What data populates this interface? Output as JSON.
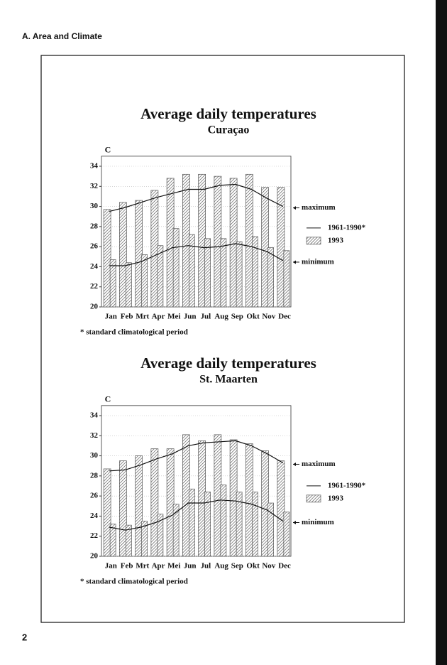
{
  "header": "A. Area and Climate",
  "page_number": "2",
  "chart_data": [
    {
      "type": "bar_line",
      "title": "Average daily temperatures",
      "subtitle": "Curaçao",
      "y_label": "C",
      "categories": [
        "Jan",
        "Feb",
        "Mrt",
        "Apr",
        "Mei",
        "Jun",
        "Jul",
        "Aug",
        "Sep",
        "Okt",
        "Nov",
        "Dec"
      ],
      "ylim": [
        20,
        35
      ],
      "yticks": [
        20,
        22,
        24,
        26,
        28,
        30,
        32,
        34
      ],
      "grid": true,
      "max_label": "maximum",
      "min_label": "minimum",
      "footnote": "* standard climatological period",
      "series": [
        {
          "name": "1993",
          "kind": "bar",
          "color": "#555555",
          "max": [
            29.7,
            30.4,
            30.6,
            31.6,
            32.8,
            33.2,
            33.2,
            33.0,
            32.8,
            33.2,
            31.9,
            31.9
          ],
          "min": [
            24.7,
            24.4,
            25.2,
            26.1,
            27.8,
            27.2,
            26.8,
            26.8,
            26.5,
            27.0,
            25.9,
            25.6
          ]
        },
        {
          "name": "1961-1990*",
          "kind": "line",
          "color": "#111111",
          "max": [
            29.5,
            29.9,
            30.4,
            30.9,
            31.3,
            31.7,
            31.7,
            32.1,
            32.2,
            31.7,
            30.8,
            30.0
          ],
          "min": [
            24.1,
            24.1,
            24.5,
            25.2,
            25.9,
            26.1,
            25.9,
            26.0,
            26.3,
            26.0,
            25.5,
            24.6
          ]
        }
      ]
    },
    {
      "type": "bar_line",
      "title": "Average daily temperatures",
      "subtitle": "St. Maarten",
      "y_label": "C",
      "categories": [
        "Jan",
        "Feb",
        "Mrt",
        "Apr",
        "Mei",
        "Jun",
        "Jul",
        "Aug",
        "Sep",
        "Okt",
        "Nov",
        "Dec"
      ],
      "ylim": [
        20,
        35
      ],
      "yticks": [
        20,
        22,
        24,
        26,
        28,
        30,
        32,
        34
      ],
      "grid": true,
      "max_label": "maximum",
      "min_label": "minimum",
      "footnote": "* standard climatological period",
      "series": [
        {
          "name": "1993",
          "kind": "bar",
          "color": "#555555",
          "max": [
            28.7,
            29.5,
            30.0,
            30.7,
            30.7,
            32.1,
            31.5,
            32.1,
            31.6,
            31.2,
            30.5,
            29.5
          ],
          "min": [
            23.2,
            23.1,
            23.5,
            24.2,
            25.2,
            26.7,
            26.4,
            27.1,
            26.4,
            26.4,
            25.3,
            24.4
          ]
        },
        {
          "name": "1961-1990*",
          "kind": "line",
          "color": "#111111",
          "max": [
            28.5,
            28.6,
            29.1,
            29.7,
            30.2,
            31.0,
            31.3,
            31.4,
            31.5,
            31.0,
            30.2,
            29.3
          ],
          "min": [
            22.9,
            22.6,
            22.9,
            23.4,
            24.1,
            25.3,
            25.3,
            25.6,
            25.5,
            25.2,
            24.6,
            23.5
          ]
        }
      ]
    }
  ]
}
